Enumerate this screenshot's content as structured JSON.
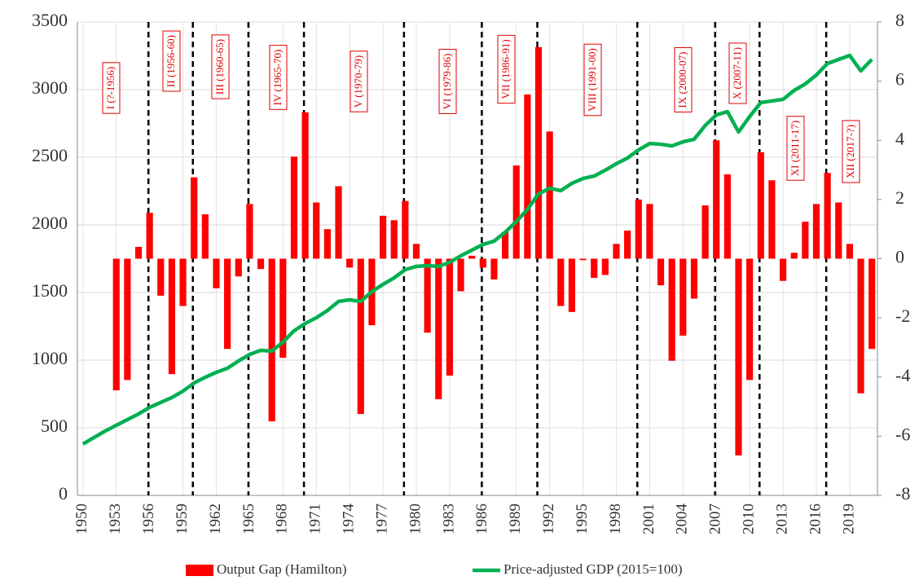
{
  "chart_data": {
    "type": "bar-line",
    "categories": [
      "1950",
      null,
      null,
      "1953",
      null,
      null,
      "1956",
      null,
      null,
      "1959",
      null,
      null,
      "1962",
      null,
      null,
      "1965",
      null,
      null,
      "1968",
      null,
      null,
      "1971",
      null,
      null,
      "1974",
      null,
      null,
      "1977",
      null,
      null,
      "1980",
      null,
      null,
      "1983",
      null,
      null,
      "1986",
      null,
      null,
      "1989",
      null,
      null,
      "1992",
      null,
      null,
      "1995",
      null,
      null,
      "1998",
      null,
      null,
      "2001",
      null,
      null,
      "2004",
      null,
      null,
      "2007",
      null,
      null,
      "2010",
      null,
      null,
      "2013",
      null,
      null,
      "2016",
      null,
      null,
      "2019",
      null,
      null
    ],
    "series": [
      {
        "name": "Output Gap (Hamilton)",
        "type": "bar",
        "axis": "y2",
        "color": "#ff0000",
        "values": [
          null,
          null,
          null,
          -4.45,
          -4.1,
          0.4,
          1.55,
          -1.25,
          -3.9,
          -1.6,
          2.75,
          1.5,
          -1.0,
          -3.05,
          -0.6,
          1.85,
          -0.35,
          -5.5,
          -3.35,
          3.45,
          4.95,
          1.9,
          1.0,
          2.45,
          -0.3,
          -5.25,
          -2.25,
          1.45,
          1.3,
          1.95,
          0.5,
          -2.5,
          -4.75,
          -3.95,
          -1.1,
          0.1,
          -0.3,
          -0.7,
          0.9,
          3.15,
          5.55,
          7.15,
          4.3,
          -1.6,
          -1.8,
          -0.05,
          -0.65,
          -0.55,
          0.5,
          0.95,
          2.0,
          1.85,
          -0.9,
          -3.45,
          -2.6,
          -1.35,
          1.8,
          4.0,
          2.85,
          -6.65,
          -4.1,
          3.6,
          2.65,
          -0.75,
          0.2,
          1.25,
          1.85,
          2.9,
          1.9,
          0.5,
          -4.55,
          -3.05
        ]
      },
      {
        "name": "Price-adjusted GDP (2015=100)",
        "type": "line",
        "axis": "y",
        "color": "#00b050",
        "values": [
          380,
          428,
          476,
          518,
          560,
          602,
          651,
          687,
          723,
          771,
          831,
          873,
          910,
          940,
          994,
          1042,
          1072,
          1066,
          1133,
          1217,
          1271,
          1313,
          1367,
          1434,
          1446,
          1434,
          1506,
          1560,
          1608,
          1669,
          1693,
          1699,
          1693,
          1723,
          1771,
          1813,
          1855,
          1880,
          1946,
          2024,
          2114,
          2229,
          2271,
          2253,
          2307,
          2343,
          2361,
          2404,
          2452,
          2494,
          2554,
          2602,
          2596,
          2584,
          2614,
          2633,
          2735,
          2813,
          2837,
          2687,
          2801,
          2904,
          2916,
          2928,
          2994,
          3042,
          3108,
          3193,
          3223,
          3253,
          3139,
          3223
        ]
      }
    ],
    "ylim": [
      0,
      3500
    ],
    "yticks": [
      0,
      500,
      1000,
      1500,
      2000,
      2500,
      3000,
      3500
    ],
    "y2lim": [
      -8,
      8
    ],
    "y2ticks": [
      -8,
      -6,
      -4,
      -2,
      0,
      2,
      4,
      6,
      8
    ],
    "grid": true,
    "legend": "bottom",
    "cycle_breaks": [
      1956,
      1960,
      1965,
      1970,
      1979,
      1986,
      1991,
      2000,
      2007,
      2011,
      2017
    ],
    "cycle_labels": [
      "I (?-1956)",
      "II (1956-60)",
      "III (1960-65)",
      "IV (1965-70)",
      "V (1970-79)",
      "VI (1979-86)",
      "VII (1986-91)",
      "VIII (1991-00)",
      "IX (2000-07)",
      "X (2007-11)",
      "XI (2011-17)",
      "XII (2017-?)"
    ]
  }
}
